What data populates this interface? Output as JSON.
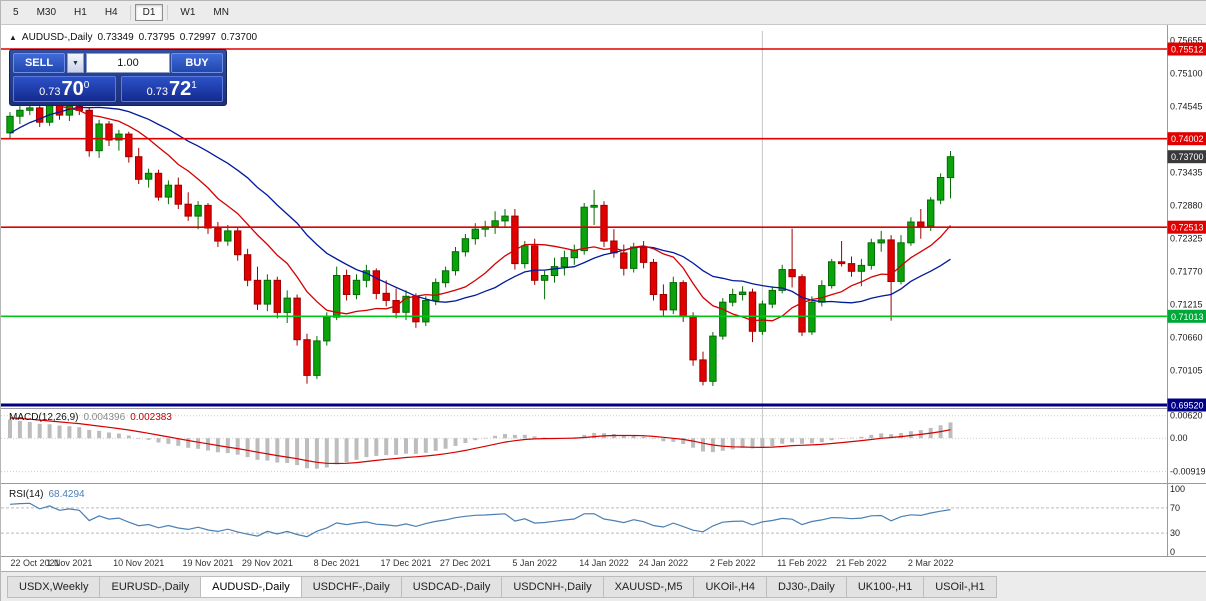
{
  "toolbar": {
    "timeframes": [
      "5",
      "M30",
      "H1",
      "H4",
      "D1",
      "W1",
      "MN"
    ],
    "active": "D1"
  },
  "chart_header": {
    "marker": "▲",
    "symbol": "AUDUSD-,Daily",
    "open": "0.73349",
    "high": "0.73795",
    "low": "0.72997",
    "close": "0.73700"
  },
  "trade_panel": {
    "sell_label": "SELL",
    "buy_label": "BUY",
    "volume": "1.00",
    "volume_dropdown_glyph": "▼",
    "sell_price": {
      "prefix": "0.73",
      "big": "70",
      "sup": "0"
    },
    "buy_price": {
      "prefix": "0.73",
      "big": "72",
      "sup": "1"
    }
  },
  "price_axis": {
    "ticks": [
      "0.75655",
      "0.75100",
      "0.74545",
      "0.73990",
      "0.73435",
      "0.72880",
      "0.72325",
      "0.71770",
      "0.71215",
      "0.70660",
      "0.70105",
      "0.69550"
    ],
    "badges": [
      {
        "value": "0.75512",
        "color": "#e00000"
      },
      {
        "value": "0.74002",
        "color": "#e00000"
      },
      {
        "value": "0.73700",
        "color": "#3a3a3a"
      },
      {
        "value": "0.72513",
        "color": "#e00000"
      },
      {
        "value": "0.71013",
        "color": "#00a83a"
      },
      {
        "value": "0.69520",
        "color": "#000084"
      }
    ]
  },
  "macd": {
    "label": "MACD(12,26,9)",
    "value_main": "0.004396",
    "value_signal": "0.002383",
    "axis": [
      "0.00620",
      "0.00",
      "-0.00919"
    ]
  },
  "rsi": {
    "label": "RSI(14)",
    "value": "68.4294",
    "axis": [
      "100",
      "70",
      "30",
      "0"
    ],
    "levels": [
      70,
      30
    ]
  },
  "tabs": {
    "items": [
      "USDX,Weekly",
      "EURUSD-,Daily",
      "AUDUSD-,Daily",
      "USDCHF-,Daily",
      "USDCAD-,Daily",
      "USDCNH-,Daily",
      "XAUUSD-,M5",
      "UKOil-,H4",
      "DJ30-,Daily",
      "UK100-,H1",
      "USOil-,H1"
    ],
    "active_index": 2
  },
  "chart_data": {
    "type": "candlestick",
    "symbol": "AUDUSD",
    "timeframe": "Daily",
    "title": "AUDUSD-,Daily",
    "last_ohlc": {
      "open": 0.73349,
      "high": 0.73795,
      "low": 0.72997,
      "close": 0.737
    },
    "price_range": {
      "top": 0.75815,
      "bottom": 0.69487
    },
    "colors": {
      "up": "#0ba30b",
      "up_border": "#046b04",
      "down": "#e00000",
      "down_border": "#9c0000",
      "ma_fast": "#d40000",
      "ma_slow": "#001a9c",
      "hist": "#bdbdbd",
      "macd_signal": "#d40000",
      "rsi_line": "#4a7fb5"
    },
    "hlines": [
      {
        "price": 0.75512,
        "color": "#e00000",
        "width": 1.6
      },
      {
        "price": 0.74002,
        "color": "#e00000",
        "width": 1.6
      },
      {
        "price": 0.72513,
        "color": "#e00000",
        "width": 1.6
      },
      {
        "price": 0.71013,
        "color": "#00c514",
        "width": 1.6
      },
      {
        "price": 0.6952,
        "color": "#000084",
        "width": 3
      }
    ],
    "vline_index": 76,
    "date_labels": [
      {
        "i": 0,
        "t": "22 Oct 2021"
      },
      {
        "i": 6,
        "t": "1 Nov 2021"
      },
      {
        "i": 13,
        "t": "10 Nov 2021"
      },
      {
        "i": 20,
        "t": "19 Nov 2021"
      },
      {
        "i": 26,
        "t": "29 Nov 2021"
      },
      {
        "i": 33,
        "t": "8 Dec 2021"
      },
      {
        "i": 40,
        "t": "17 Dec 2021"
      },
      {
        "i": 46,
        "t": "27 Dec 2021"
      },
      {
        "i": 53,
        "t": "5 Jan 2022"
      },
      {
        "i": 60,
        "t": "14 Jan 2022"
      },
      {
        "i": 66,
        "t": "24 Jan 2022"
      },
      {
        "i": 73,
        "t": "2 Feb 2022"
      },
      {
        "i": 80,
        "t": "11 Feb 2022"
      },
      {
        "i": 86,
        "t": "21 Feb 2022"
      },
      {
        "i": 93,
        "t": "2 Mar 2022"
      }
    ],
    "prehistory_closes": [
      0.7228,
      0.7252,
      0.7275,
      0.7296,
      0.7318,
      0.734,
      0.736,
      0.7378,
      0.7395,
      0.7412,
      0.7428,
      0.7443,
      0.7456,
      0.7468,
      0.7478,
      0.7486,
      0.7492,
      0.7497,
      0.7482,
      0.7462,
      0.7445
    ],
    "candles": [
      [
        0.741,
        0.7445,
        0.74,
        0.7438
      ],
      [
        0.7438,
        0.7455,
        0.7425,
        0.7448
      ],
      [
        0.7448,
        0.7462,
        0.744,
        0.7452
      ],
      [
        0.7452,
        0.7458,
        0.742,
        0.7428
      ],
      [
        0.7428,
        0.747,
        0.7422,
        0.7462
      ],
      [
        0.7462,
        0.7468,
        0.7432,
        0.744
      ],
      [
        0.744,
        0.7462,
        0.743,
        0.7455
      ],
      [
        0.7455,
        0.7468,
        0.744,
        0.7448
      ],
      [
        0.7448,
        0.7452,
        0.737,
        0.738
      ],
      [
        0.738,
        0.7432,
        0.7368,
        0.7425
      ],
      [
        0.7425,
        0.743,
        0.7388,
        0.7398
      ],
      [
        0.7398,
        0.7415,
        0.738,
        0.7408
      ],
      [
        0.7408,
        0.7412,
        0.736,
        0.737
      ],
      [
        0.737,
        0.7385,
        0.7324,
        0.7332
      ],
      [
        0.7332,
        0.735,
        0.7318,
        0.7342
      ],
      [
        0.7342,
        0.7348,
        0.7296,
        0.7302
      ],
      [
        0.7302,
        0.733,
        0.729,
        0.7322
      ],
      [
        0.7322,
        0.7335,
        0.7282,
        0.729
      ],
      [
        0.729,
        0.731,
        0.7262,
        0.727
      ],
      [
        0.727,
        0.7295,
        0.7248,
        0.7288
      ],
      [
        0.7288,
        0.7292,
        0.724,
        0.725
      ],
      [
        0.725,
        0.726,
        0.7218,
        0.7228
      ],
      [
        0.7228,
        0.7255,
        0.722,
        0.7245
      ],
      [
        0.7245,
        0.725,
        0.7195,
        0.7205
      ],
      [
        0.7205,
        0.7215,
        0.7152,
        0.7162
      ],
      [
        0.7162,
        0.7185,
        0.7112,
        0.7122
      ],
      [
        0.7122,
        0.7172,
        0.711,
        0.7162
      ],
      [
        0.7162,
        0.7168,
        0.7098,
        0.7108
      ],
      [
        0.7108,
        0.7145,
        0.709,
        0.7132
      ],
      [
        0.7132,
        0.7138,
        0.7052,
        0.7062
      ],
      [
        0.7062,
        0.7072,
        0.6988,
        0.7002
      ],
      [
        0.7002,
        0.7068,
        0.6996,
        0.706
      ],
      [
        0.706,
        0.7108,
        0.7052,
        0.71
      ],
      [
        0.71,
        0.7185,
        0.7095,
        0.717
      ],
      [
        0.717,
        0.718,
        0.7128,
        0.7138
      ],
      [
        0.7138,
        0.7172,
        0.713,
        0.7162
      ],
      [
        0.7162,
        0.7188,
        0.715,
        0.7178
      ],
      [
        0.7178,
        0.7182,
        0.713,
        0.714
      ],
      [
        0.714,
        0.7162,
        0.7118,
        0.7128
      ],
      [
        0.7128,
        0.7148,
        0.7098,
        0.7108
      ],
      [
        0.7108,
        0.7145,
        0.7095,
        0.7135
      ],
      [
        0.7135,
        0.714,
        0.7082,
        0.7092
      ],
      [
        0.7092,
        0.7135,
        0.7085,
        0.7128
      ],
      [
        0.7128,
        0.7165,
        0.712,
        0.7158
      ],
      [
        0.7158,
        0.7185,
        0.715,
        0.7178
      ],
      [
        0.7178,
        0.7218,
        0.717,
        0.721
      ],
      [
        0.721,
        0.724,
        0.7202,
        0.7232
      ],
      [
        0.7232,
        0.7258,
        0.7222,
        0.7248
      ],
      [
        0.7248,
        0.7262,
        0.7235,
        0.7252
      ],
      [
        0.7252,
        0.7278,
        0.724,
        0.7262
      ],
      [
        0.7262,
        0.7282,
        0.7252,
        0.727
      ],
      [
        0.727,
        0.7282,
        0.718,
        0.719
      ],
      [
        0.719,
        0.7228,
        0.7182,
        0.722
      ],
      [
        0.722,
        0.7232,
        0.7154,
        0.7162
      ],
      [
        0.7162,
        0.7178,
        0.713,
        0.717
      ],
      [
        0.717,
        0.72,
        0.7158,
        0.7185
      ],
      [
        0.7185,
        0.7212,
        0.717,
        0.72
      ],
      [
        0.72,
        0.7222,
        0.7188,
        0.7212
      ],
      [
        0.7212,
        0.7292,
        0.7205,
        0.7285
      ],
      [
        0.7285,
        0.7314,
        0.7255,
        0.7288
      ],
      [
        0.7288,
        0.7295,
        0.7218,
        0.7228
      ],
      [
        0.7228,
        0.7248,
        0.72,
        0.7208
      ],
      [
        0.7208,
        0.7222,
        0.717,
        0.7182
      ],
      [
        0.7182,
        0.7225,
        0.7175,
        0.7218
      ],
      [
        0.7218,
        0.7228,
        0.7182,
        0.7192
      ],
      [
        0.7192,
        0.7198,
        0.7128,
        0.7138
      ],
      [
        0.7138,
        0.7155,
        0.7102,
        0.7112
      ],
      [
        0.7112,
        0.7168,
        0.7105,
        0.7158
      ],
      [
        0.7158,
        0.7162,
        0.7092,
        0.7102
      ],
      [
        0.7102,
        0.7108,
        0.7018,
        0.7028
      ],
      [
        0.7028,
        0.7042,
        0.6985,
        0.6992
      ],
      [
        0.6992,
        0.7075,
        0.6984,
        0.7068
      ],
      [
        0.7068,
        0.7132,
        0.7062,
        0.7125
      ],
      [
        0.7125,
        0.7148,
        0.7118,
        0.7138
      ],
      [
        0.7138,
        0.7152,
        0.7128,
        0.7142
      ],
      [
        0.7142,
        0.7148,
        0.7058,
        0.7076
      ],
      [
        0.7076,
        0.7128,
        0.707,
        0.7122
      ],
      [
        0.7122,
        0.7152,
        0.7115,
        0.7145
      ],
      [
        0.7145,
        0.7188,
        0.714,
        0.718
      ],
      [
        0.718,
        0.7249,
        0.715,
        0.7168
      ],
      [
        0.7168,
        0.7172,
        0.7068,
        0.7075
      ],
      [
        0.7075,
        0.7135,
        0.707,
        0.7125
      ],
      [
        0.7125,
        0.7162,
        0.7118,
        0.7153
      ],
      [
        0.7153,
        0.7198,
        0.7148,
        0.7193
      ],
      [
        0.7193,
        0.7228,
        0.7185,
        0.719
      ],
      [
        0.719,
        0.7202,
        0.7168,
        0.7177
      ],
      [
        0.7177,
        0.7198,
        0.7152,
        0.7187
      ],
      [
        0.7187,
        0.7232,
        0.718,
        0.7225
      ],
      [
        0.7225,
        0.7245,
        0.721,
        0.723
      ],
      [
        0.723,
        0.7238,
        0.7094,
        0.716
      ],
      [
        0.716,
        0.7238,
        0.7155,
        0.7225
      ],
      [
        0.7225,
        0.7268,
        0.722,
        0.726
      ],
      [
        0.726,
        0.7282,
        0.7232,
        0.7253
      ],
      [
        0.7253,
        0.7302,
        0.7245,
        0.7297
      ],
      [
        0.7297,
        0.7342,
        0.729,
        0.7335
      ],
      [
        0.73349,
        0.73795,
        0.72997,
        0.737
      ]
    ],
    "indicators": {
      "ma_fast_period": 10,
      "ma_slow_period": 21,
      "macd": [
        12,
        26,
        9
      ],
      "rsi_period": 14
    }
  }
}
